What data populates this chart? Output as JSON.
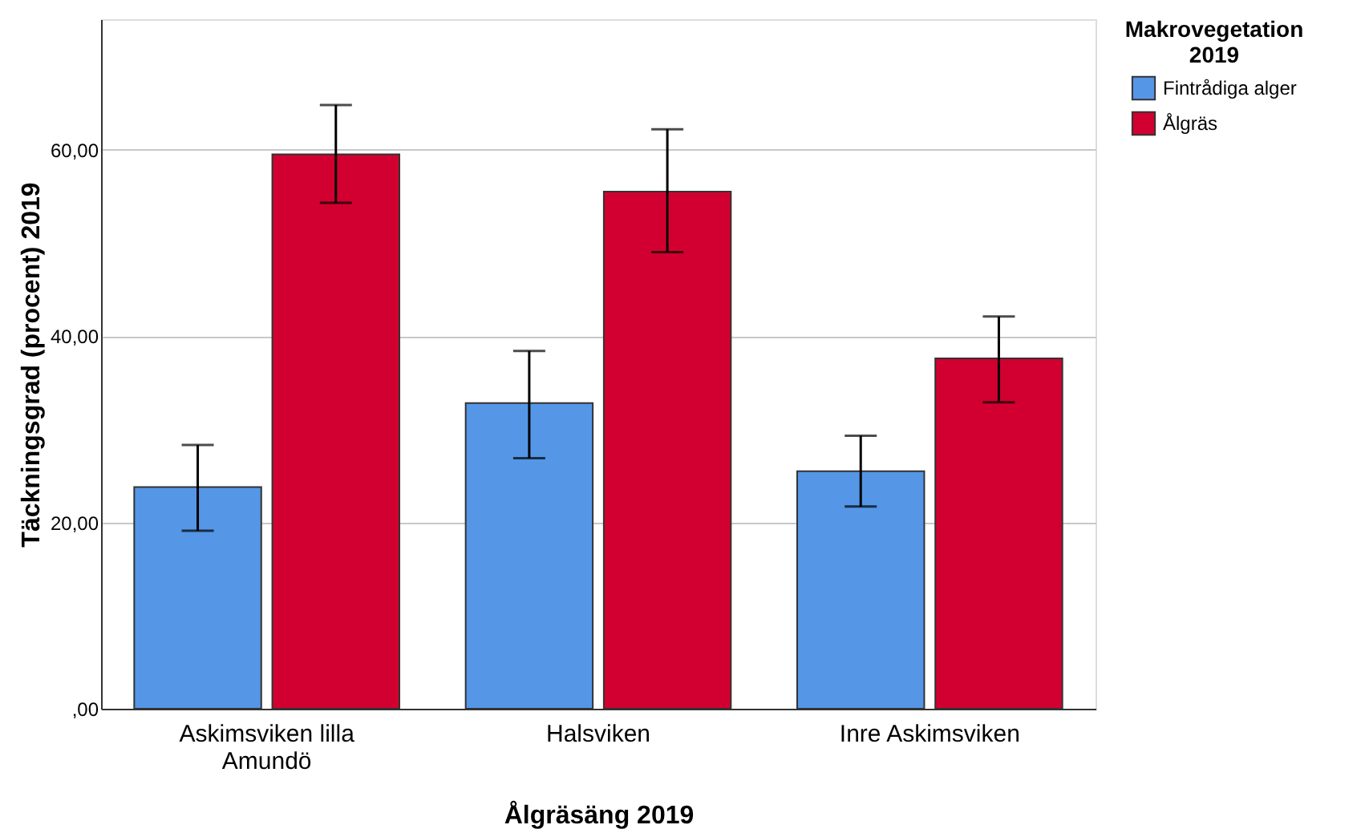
{
  "chart_data": {
    "type": "bar",
    "xlabel": "Ålgräsäng 2019",
    "ylabel": "Täckningsgrad (procent) 2019",
    "legend_title": "Makrovegetation 2019",
    "categories": [
      "Askimsviken lilla Amundö",
      "Halsviken",
      "Inre Askimsviken"
    ],
    "series": [
      {
        "name": "Fintrådiga alger",
        "color": "#5596e6",
        "values": [
          23.8,
          32.8,
          25.5
        ],
        "errors": [
          [
            19.1,
            28.3
          ],
          [
            26.9,
            38.4
          ],
          [
            21.7,
            29.3
          ]
        ]
      },
      {
        "name": "Ålgräs",
        "color": "#d20030",
        "values": [
          59.5,
          55.5,
          37.6
        ],
        "errors": [
          [
            54.3,
            64.8
          ],
          [
            49.0,
            62.2
          ],
          [
            32.9,
            42.1
          ]
        ]
      }
    ],
    "ylim": [
      0,
      74
    ],
    "yticks": [
      {
        "value": 0,
        "label": ",00"
      },
      {
        "value": 20,
        "label": "20,00"
      },
      {
        "value": 40,
        "label": "40,00"
      },
      {
        "value": 60,
        "label": "60,00"
      }
    ],
    "grid": "y",
    "legend": "top right"
  }
}
